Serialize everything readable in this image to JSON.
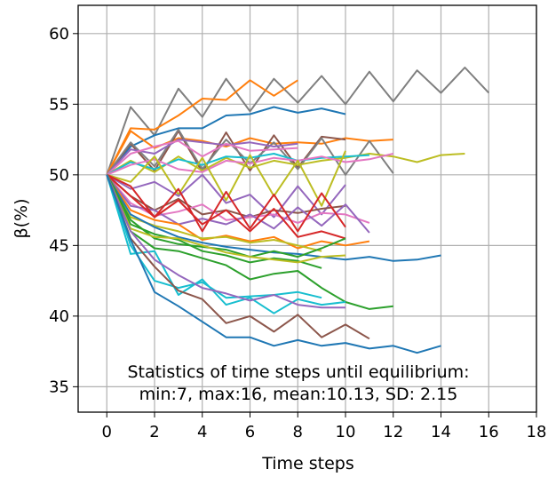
{
  "chart_data": {
    "type": "line",
    "title": "",
    "xlabel": "Time steps",
    "ylabel": "β(%)",
    "xlim": [
      -1.2,
      18
    ],
    "ylim": [
      33.2,
      62
    ],
    "x_ticks": [
      0,
      2,
      4,
      6,
      8,
      10,
      12,
      14,
      16,
      18
    ],
    "y_ticks": [
      35,
      40,
      45,
      50,
      55,
      60
    ],
    "grid": true,
    "annotation": {
      "line1": "Statistics of time steps until equilibrium:",
      "line2": "min:7, max:16, mean:10.13, SD: 2.15"
    },
    "series": [
      {
        "color": "#7f7f7f",
        "values": [
          50,
          54.8,
          52.8,
          56.1,
          54.1,
          56.8,
          54.5,
          56.8,
          55.1,
          57.0,
          55.0,
          57.3,
          55.2,
          57.4,
          55.8,
          57.6,
          55.8
        ]
      },
      {
        "color": "#ff7f0e",
        "values": [
          50,
          53.3,
          53.2,
          54.2,
          55.4,
          55.3,
          56.7,
          55.6,
          56.7
        ]
      },
      {
        "color": "#1f77b4",
        "values": [
          50,
          52.0,
          52.8,
          53.3,
          53.3,
          54.2,
          54.3,
          54.8,
          54.4,
          54.7,
          54.3
        ]
      },
      {
        "color": "#ff7f0e",
        "values": [
          50,
          53.1,
          51.9,
          52.6,
          52.4,
          52.0,
          52.6,
          52.2,
          52.3,
          52.2,
          52.6,
          52.4,
          52.5
        ]
      },
      {
        "color": "#8c564b",
        "values": [
          50,
          52.2,
          50.3,
          53.1,
          50.2,
          53.0,
          50.3,
          52.8,
          50.5,
          52.7,
          52.5
        ]
      },
      {
        "color": "#7f7f7f",
        "values": [
          50,
          52.3,
          50.6,
          53.2,
          50.4,
          52.5,
          50.8,
          52.3,
          50.4,
          52.6,
          50.0,
          52.4,
          50.1
        ]
      },
      {
        "color": "#9467bd",
        "values": [
          50,
          51.8,
          51.5,
          52.5,
          52.3,
          52.1,
          52.3,
          52.0,
          52.2
        ]
      },
      {
        "color": "#e377c2",
        "values": [
          50,
          51.5,
          52.0,
          52.4,
          51.3,
          52.2,
          51.7,
          51.8,
          51.9
        ]
      },
      {
        "color": "#bcbd22",
        "values": [
          50,
          51.0,
          50.2,
          51.3,
          50.3,
          51.2,
          50.5,
          51.0,
          50.7,
          51.0,
          51.2,
          51.5,
          51.3,
          50.9,
          51.4,
          51.5
        ]
      },
      {
        "color": "#17becf",
        "values": [
          50,
          50.9,
          50.4,
          51.1,
          50.7,
          51.3,
          51.2,
          51.5,
          51.0,
          51.2,
          51.3,
          51.4
        ]
      },
      {
        "color": "#e377c2",
        "values": [
          50,
          50.7,
          51.1,
          50.4,
          50.2,
          51.0,
          50.8,
          51.2,
          51.0,
          51.3,
          50.9,
          51.1,
          51.5
        ]
      },
      {
        "color": "#bcbd22",
        "values": [
          50,
          49.5,
          51.3,
          48.6,
          51.2,
          48.2,
          51.4,
          48.5,
          51.0,
          47.8,
          51.7
        ]
      },
      {
        "color": "#9467bd",
        "values": [
          50,
          49.0,
          49.5,
          48.5,
          50.0,
          48.0,
          48.6,
          47.0,
          49.2,
          47.2,
          49.3
        ]
      },
      {
        "color": "#8c564b",
        "values": [
          50,
          48.5,
          47.5,
          48.3,
          47.2,
          47.5,
          47.0,
          47.5,
          47.3,
          47.6,
          47.8
        ]
      },
      {
        "color": "#e377c2",
        "values": [
          50,
          48.0,
          47.1,
          47.4,
          47.9,
          46.8,
          47.0,
          47.2,
          46.6,
          47.3,
          47.2,
          46.6
        ]
      },
      {
        "color": "#9467bd",
        "values": [
          50,
          47.8,
          47.5,
          46.5,
          46.9,
          46.5,
          47.2,
          46.2,
          47.7,
          46.4,
          47.9,
          45.9
        ]
      },
      {
        "color": "#d62728",
        "values": [
          50,
          49.2,
          47.0,
          49.0,
          46.0,
          48.8,
          46.2,
          48.6,
          46.0,
          48.7,
          46.3
        ]
      },
      {
        "color": "#d62728",
        "values": [
          50,
          48.5,
          47.0,
          48.2,
          46.5,
          47.5,
          46.0,
          47.6,
          45.6,
          46.0,
          45.5
        ]
      },
      {
        "color": "#ff7f0e",
        "values": [
          50,
          47.5,
          46.8,
          46.5,
          45.4,
          45.7,
          45.3,
          45.6,
          44.8,
          45.3,
          45.0,
          45.3
        ]
      },
      {
        "color": "#bcbd22",
        "values": [
          50,
          47.0,
          46.4,
          46.0,
          45.5,
          45.6,
          45.2,
          45.4,
          45.0,
          44.6
        ]
      },
      {
        "color": "#1f77b4",
        "values": [
          50,
          47.2,
          46.3,
          45.6,
          45.2,
          44.9,
          44.7,
          44.5,
          44.4,
          44.2,
          44.0,
          44.2,
          43.9,
          44.0,
          44.3
        ]
      },
      {
        "color": "#2ca02c",
        "values": [
          50,
          46.8,
          45.5,
          45.1,
          44.9,
          44.7,
          44.2,
          44.6,
          44.2,
          44.8,
          45.5
        ]
      },
      {
        "color": "#2ca02c",
        "values": [
          50,
          46.5,
          45.8,
          45.4,
          44.6,
          44.3,
          43.8,
          44.1,
          43.9,
          43.4
        ]
      },
      {
        "color": "#bcbd22",
        "values": [
          50,
          46.2,
          45.6,
          45.5,
          45.0,
          44.5,
          44.2,
          44.0,
          43.8,
          44.2,
          44.3
        ]
      },
      {
        "color": "#2ca02c",
        "values": [
          50,
          46.0,
          44.8,
          44.6,
          44.1,
          43.6,
          42.6,
          43.0,
          43.2,
          42.0,
          41.0,
          40.5,
          40.7
        ]
      },
      {
        "color": "#17becf",
        "values": [
          50,
          44.4,
          44.6,
          41.5,
          42.6,
          40.8,
          41.3,
          40.2,
          41.2,
          40.8,
          41.0
        ]
      },
      {
        "color": "#17becf",
        "values": [
          50,
          45.0,
          42.5,
          42.0,
          42.4,
          41.3,
          41.4,
          41.5,
          41.7,
          41.3
        ]
      },
      {
        "color": "#9467bd",
        "values": [
          50,
          46.0,
          44.0,
          42.9,
          42.0,
          41.6,
          41.1,
          41.5,
          40.8,
          40.6,
          40.6
        ]
      },
      {
        "color": "#8c564b",
        "values": [
          50,
          45.5,
          43.5,
          41.8,
          41.2,
          39.5,
          40.0,
          38.9,
          40.1,
          38.5,
          39.4,
          38.4
        ]
      },
      {
        "color": "#1f77b4",
        "values": [
          50,
          45.4,
          41.7,
          40.7,
          39.6,
          38.5,
          38.5,
          37.9,
          38.3,
          37.9,
          38.1,
          37.7,
          37.9,
          37.4,
          37.9
        ]
      }
    ]
  }
}
